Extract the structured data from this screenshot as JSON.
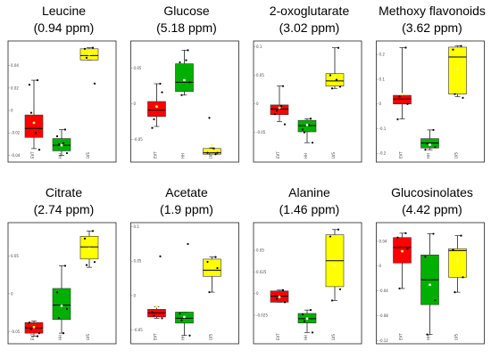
{
  "chart_data": [
    {
      "type": "box",
      "title_line1": "Leucine",
      "title_line2": "(0.94 ppm)",
      "categories": [
        "EVT",
        "HH",
        "LVS"
      ],
      "yticks": [
        -0.04,
        -0.02,
        0,
        0.02,
        0.04
      ],
      "ytick_labels": [
        "-0.04",
        "-0.02",
        "0",
        "0.02",
        "0.04"
      ],
      "ylim": [
        -0.046,
        0.062
      ],
      "boxes": [
        {
          "color": "#ff0000",
          "whislo": -0.034,
          "q1": -0.024,
          "med": -0.016,
          "q3": -0.004,
          "whishi": 0.027,
          "mean": -0.011,
          "points": [
            0.027,
            0.023,
            -0.035,
            -0.002,
            -0.02
          ]
        },
        {
          "color": "#00b000",
          "whislo": -0.04,
          "q1": -0.036,
          "med": -0.031,
          "q3": -0.025,
          "whishi": -0.017,
          "mean": -0.031,
          "points": [
            -0.017,
            -0.023,
            -0.038,
            -0.03,
            -0.029
          ]
        },
        {
          "color": "#ffff00",
          "whislo": 0.045,
          "q1": 0.045,
          "med": 0.049,
          "q3": 0.055,
          "whishi": 0.056,
          "mean": 0.05,
          "points": [
            0.056,
            0.055,
            0.024,
            0.047
          ]
        }
      ]
    },
    {
      "type": "box",
      "title_line1": "Glucose",
      "title_line2": "(5.18 ppm)",
      "categories": [
        "EVT",
        "HH",
        "LVS"
      ],
      "yticks": [
        -0.05,
        0,
        0.05
      ],
      "ytick_labels": [
        "-0.05",
        "0",
        "0.05"
      ],
      "ylim": [
        -0.082,
        0.088
      ],
      "boxes": [
        {
          "color": "#ff0000",
          "whislo": -0.032,
          "q1": -0.018,
          "med": -0.009,
          "q3": 0.003,
          "whishi": 0.028,
          "mean": -0.004,
          "points": [
            0.028,
            -0.034,
            0.016,
            -0.022
          ]
        },
        {
          "color": "#00b000",
          "whislo": 0.012,
          "q1": 0.017,
          "med": 0.03,
          "q3": 0.056,
          "whishi": 0.075,
          "mean": 0.033,
          "points": [
            0.075,
            0.058,
            0.03,
            0.012,
            0.061
          ]
        },
        {
          "color": "#ffff00",
          "whislo": -0.071,
          "q1": -0.071,
          "med": -0.069,
          "q3": -0.063,
          "whishi": -0.062,
          "mean": -0.058,
          "points": [
            -0.071,
            -0.069,
            -0.069,
            -0.02,
            -0.063
          ]
        }
      ]
    },
    {
      "type": "box",
      "title_line1": "2-oxoglutarate",
      "title_line2": "(3.02 ppm)",
      "categories": [
        "EVT",
        "HH",
        "LVS"
      ],
      "yticks": [
        -0.05,
        0,
        0.05,
        0.1
      ],
      "ytick_labels": [
        "-0.05",
        "0",
        "0.05",
        "0.1"
      ],
      "ylim": [
        -0.102,
        0.11
      ],
      "boxes": [
        {
          "color": "#ff0000",
          "whislo": -0.031,
          "q1": -0.019,
          "med": -0.009,
          "q3": -0.002,
          "whishi": 0.031,
          "mean": -0.007,
          "points": [
            0.031,
            -0.018,
            -0.036,
            -0.012,
            -0.004
          ]
        },
        {
          "color": "#00b000",
          "whislo": -0.068,
          "q1": -0.049,
          "med": -0.038,
          "q3": -0.029,
          "whishi": -0.026,
          "mean": -0.037,
          "points": [
            -0.026,
            -0.045,
            -0.068,
            -0.05,
            -0.037
          ]
        },
        {
          "color": "#ffff00",
          "whislo": 0.027,
          "q1": 0.031,
          "med": 0.04,
          "q3": 0.053,
          "whishi": 0.098,
          "mean": 0.047,
          "points": [
            0.098,
            0.05,
            0.03,
            0.027,
            0.042
          ]
        }
      ]
    },
    {
      "type": "box",
      "title_line1": "Methoxy flavonoids",
      "title_line2": "(3.62 ppm)",
      "categories": [
        "EVT",
        "HH",
        "LVS"
      ],
      "yticks": [
        -0.2,
        -0.1,
        0,
        0.1,
        0.2
      ],
      "ytick_labels": [
        "-0.2",
        "-0.1",
        "0",
        "0.1",
        "0.2"
      ],
      "ylim": [
        -0.235,
        0.255
      ],
      "boxes": [
        {
          "color": "#ff0000",
          "whislo": -0.06,
          "q1": 0.0,
          "med": 0.02,
          "q3": 0.035,
          "whishi": 0.228,
          "mean": 0.04,
          "points": [
            0.228,
            -0.062,
            0.0,
            0.03
          ]
        },
        {
          "color": "#00b000",
          "whislo": -0.185,
          "q1": -0.178,
          "med": -0.158,
          "q3": -0.14,
          "whishi": -0.105,
          "mean": -0.165,
          "points": [
            -0.105,
            -0.185,
            -0.175,
            -0.16
          ]
        },
        {
          "color": "#ffff00",
          "whislo": 0.03,
          "q1": 0.04,
          "med": 0.19,
          "q3": 0.23,
          "whishi": 0.235,
          "mean": 0.14,
          "points": [
            0.235,
            0.22,
            0.025,
            0.04
          ]
        }
      ]
    },
    {
      "type": "box",
      "title_line1": "Citrate",
      "title_line2": "(2.74 ppm)",
      "categories": [
        "EVT",
        "HH",
        "LVS"
      ],
      "yticks": [
        -0.05,
        0,
        0.05
      ],
      "ytick_labels": [
        "-0.05",
        "0",
        "0.05"
      ],
      "ylim": [
        -0.066,
        0.094
      ],
      "boxes": [
        {
          "color": "#ff0000",
          "whislo": -0.056,
          "q1": -0.052,
          "med": -0.045,
          "q3": -0.038,
          "whishi": -0.036,
          "mean": -0.044,
          "points": [
            -0.056,
            -0.038,
            -0.052,
            -0.047
          ]
        },
        {
          "color": "#00b000",
          "whislo": -0.052,
          "q1": -0.034,
          "med": -0.015,
          "q3": 0.007,
          "whishi": 0.037,
          "mean": -0.016,
          "points": [
            0.037,
            0.002,
            -0.02,
            -0.032,
            -0.052
          ]
        },
        {
          "color": "#ffff00",
          "whislo": 0.035,
          "q1": 0.046,
          "med": 0.062,
          "q3": 0.076,
          "whishi": 0.083,
          "mean": 0.06,
          "points": [
            0.083,
            0.073,
            0.042,
            0.038
          ]
        }
      ]
    },
    {
      "type": "box",
      "title_line1": "Acetate",
      "title_line2": "(1.9 ppm)",
      "categories": [
        "EVT",
        "HH",
        "LVS"
      ],
      "yticks": [
        -0.05,
        0,
        0.05,
        0.1
      ],
      "ytick_labels": [
        "-0.05",
        "0",
        "0.05",
        "0.1"
      ],
      "ylim": [
        -0.07,
        0.106
      ],
      "boxes": [
        {
          "color": "#ff0000",
          "whislo": -0.033,
          "q1": -0.031,
          "med": -0.025,
          "q3": -0.02,
          "whishi": -0.016,
          "mean": -0.016,
          "points": [
            0.057,
            -0.024,
            -0.033,
            -0.029
          ]
        },
        {
          "color": "#00b000",
          "whislo": -0.058,
          "q1": -0.04,
          "med": -0.033,
          "q3": -0.024,
          "whishi": -0.024,
          "mean": -0.031,
          "points": [
            0.075,
            -0.026,
            -0.058,
            -0.036
          ]
        },
        {
          "color": "#ffff00",
          "whislo": 0.005,
          "q1": 0.028,
          "med": 0.037,
          "q3": 0.053,
          "whishi": 0.056,
          "mean": 0.04,
          "points": [
            0.056,
            0.049,
            0.04,
            0.005
          ]
        }
      ]
    },
    {
      "type": "box",
      "title_line1": "Alanine",
      "title_line2": "(1.46 ppm)",
      "categories": [
        "EVT",
        "HH",
        "LVS"
      ],
      "yticks": [
        -0.025,
        0,
        0.025,
        0.05
      ],
      "ytick_labels": [
        "-0.025",
        "0",
        "0.025",
        "0.05"
      ],
      "ylim": [
        -0.058,
        0.082
      ],
      "boxes": [
        {
          "color": "#ff0000",
          "whislo": -0.01,
          "q1": -0.01,
          "med": -0.003,
          "q3": 0.003,
          "whishi": 0.004,
          "mean": -0.004,
          "points": [
            0.004,
            -0.003,
            -0.01,
            -0.006
          ]
        },
        {
          "color": "#00b000",
          "whislo": -0.045,
          "q1": -0.034,
          "med": -0.029,
          "q3": -0.023,
          "whishi": -0.019,
          "mean": -0.029,
          "points": [
            -0.019,
            -0.024,
            -0.045,
            -0.032
          ]
        },
        {
          "color": "#ffff00",
          "whislo": -0.008,
          "q1": 0.008,
          "med": 0.038,
          "q3": 0.068,
          "whishi": 0.074,
          "mean": 0.033,
          "points": [
            0.074,
            0.066,
            0.005,
            -0.008
          ]
        }
      ]
    },
    {
      "type": "box",
      "title_line1": "Glucosinolates",
      "title_line2": "(4.42 ppm)",
      "categories": [
        "EVT",
        "HH",
        "LVS"
      ],
      "yticks": [
        -0.12,
        -0.08,
        -0.04,
        0,
        0.04
      ],
      "ytick_labels": [
        "-0.12",
        "-0.08",
        "-0.04",
        "0",
        "0.04"
      ],
      "ylim": [
        -0.125,
        0.07
      ],
      "boxes": [
        {
          "color": "#ff0000",
          "whislo": -0.036,
          "q1": 0.005,
          "med": 0.03,
          "q3": 0.046,
          "whishi": 0.053,
          "mean": 0.024,
          "points": [
            0.053,
            0.046,
            0.028,
            -0.036
          ]
        },
        {
          "color": "#00b000",
          "whislo": -0.11,
          "q1": -0.062,
          "med": -0.022,
          "q3": 0.018,
          "whishi": 0.052,
          "mean": -0.03,
          "points": [
            0.052,
            0.015,
            -0.055,
            -0.11
          ]
        },
        {
          "color": "#ffff00",
          "whislo": -0.042,
          "q1": -0.018,
          "med": 0.025,
          "q3": 0.028,
          "whishi": 0.049,
          "mean": 0.011,
          "points": [
            0.049,
            0.026,
            -0.018,
            -0.042
          ]
        }
      ]
    }
  ]
}
